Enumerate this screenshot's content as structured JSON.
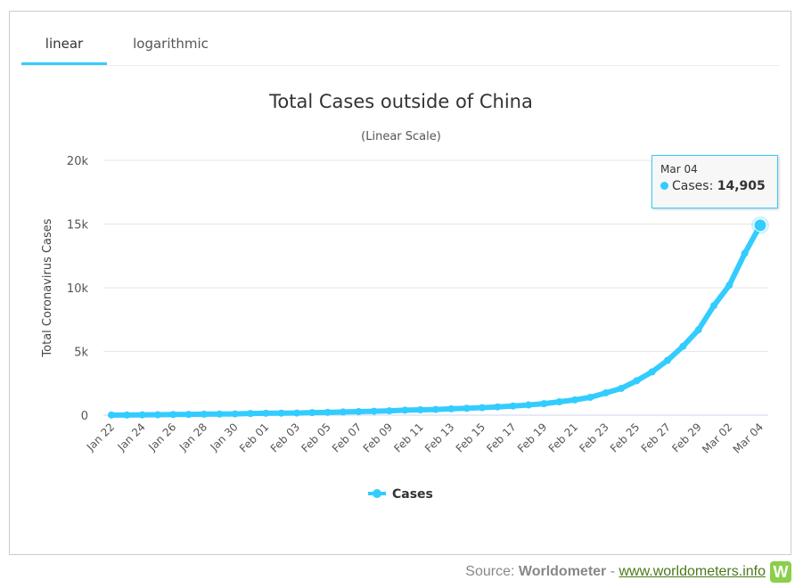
{
  "tabs": [
    {
      "label": "linear",
      "active": true
    },
    {
      "label": "logarithmic",
      "active": false
    }
  ],
  "tooltip": {
    "date": "Mar 04",
    "series": "Cases",
    "value": "14,905"
  },
  "source": {
    "prefix": "Source: ",
    "name": "Worldometer",
    "sep": " - ",
    "link": "www.worldometers.info",
    "logo": "W"
  },
  "colors": {
    "series": "#33ccff"
  },
  "chart_data": {
    "type": "line",
    "title": "Total Cases outside of China",
    "subtitle": "(Linear Scale)",
    "ylabel": "Total Coronavirus Cases",
    "xlabel": "",
    "ylim": [
      0,
      20000
    ],
    "yticks": [
      0,
      5000,
      10000,
      15000,
      20000
    ],
    "ytick_labels": [
      "0",
      "5k",
      "10k",
      "15k",
      "20k"
    ],
    "legend": {
      "label": "Cases",
      "placement": "bottom-center"
    },
    "x": [
      "Jan 22",
      "Jan 23",
      "Jan 24",
      "Jan 25",
      "Jan 26",
      "Jan 27",
      "Jan 28",
      "Jan 29",
      "Jan 30",
      "Jan 31",
      "Feb 01",
      "Feb 02",
      "Feb 03",
      "Feb 04",
      "Feb 05",
      "Feb 06",
      "Feb 07",
      "Feb 08",
      "Feb 09",
      "Feb 10",
      "Feb 11",
      "Feb 12",
      "Feb 13",
      "Feb 14",
      "Feb 15",
      "Feb 16",
      "Feb 17",
      "Feb 18",
      "Feb 19",
      "Feb 20",
      "Feb 21",
      "Feb 22",
      "Feb 23",
      "Feb 24",
      "Feb 25",
      "Feb 26",
      "Feb 27",
      "Feb 28",
      "Feb 29",
      "Mar 01",
      "Mar 02",
      "Mar 03",
      "Mar 04"
    ],
    "series": [
      {
        "name": "Cases",
        "values": [
          10,
          12,
          25,
          35,
          50,
          60,
          75,
          85,
          100,
          130,
          150,
          160,
          170,
          200,
          220,
          250,
          280,
          310,
          340,
          390,
          420,
          450,
          500,
          540,
          590,
          650,
          720,
          800,
          900,
          1050,
          1200,
          1400,
          1750,
          2100,
          2700,
          3400,
          4300,
          5400,
          6700,
          8600,
          10200,
          12700,
          14905
        ]
      }
    ]
  }
}
